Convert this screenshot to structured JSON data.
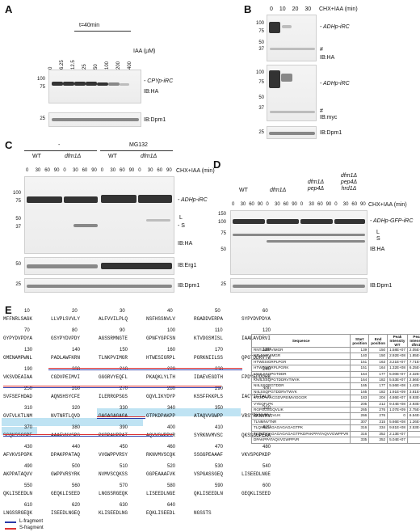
{
  "panels": {
    "A": {
      "letter": "A",
      "time": "t=40min",
      "iaa_label": "IAA (µM)",
      "concentrations": [
        "0",
        "6.25",
        "12.5",
        "25",
        "50",
        "100",
        "200",
        "400"
      ],
      "mw": [
        "100",
        "75",
        "25"
      ],
      "band_label": "- CPYp-iRC",
      "ib1": "IB:HA",
      "ib2": "IB:Dpm1"
    },
    "B": {
      "letter": "B",
      "times": [
        "0",
        "10",
        "20",
        "30"
      ],
      "treatment": "CHX+IAA (min)",
      "mw": [
        "100",
        "75",
        "50",
        "37",
        "100",
        "75",
        "50",
        "37",
        "25"
      ],
      "band_label": "- ADHp-iRC",
      "hash": "#",
      "ib1": "IB:HA",
      "ib2": "IB:myc",
      "ib3": "IB:Dpm1"
    },
    "C": {
      "letter": "C",
      "group_minus": "-",
      "group_mg": "MG132",
      "strains": [
        "WT",
        "dfm1Δ",
        "WT",
        "dfm1Δ"
      ],
      "times": [
        "0",
        "30",
        "60",
        "90",
        "0",
        "30",
        "60",
        "90",
        "0",
        "30",
        "60",
        "90",
        "0",
        "30",
        "60",
        "90"
      ],
      "treatment": "CHX+IAA (min)",
      "mw": [
        "100",
        "75",
        "50",
        "37",
        "50",
        "25"
      ],
      "band_label": "- ADHp-iRC",
      "frag_L": "L",
      "frag_S": "- S",
      "ib1": "IB:HA",
      "ib2": "IB:Erg1",
      "ib3": "IB:Dpm1"
    },
    "D": {
      "letter": "D",
      "strains": [
        "WT",
        "dfm1Δ",
        "dfm1Δ pep4Δ",
        "dfm1Δ pep4Δ hrd1Δ"
      ],
      "times": [
        "0",
        "30",
        "60",
        "90",
        "0",
        "30",
        "60",
        "90",
        "0",
        "30",
        "60",
        "90",
        "0",
        "30",
        "60",
        "90"
      ],
      "treatment": "CHX+IAA (min)",
      "mw": [
        "150",
        "100",
        "75",
        "50",
        "25"
      ],
      "band_label": "- ADHp-GFP-iRC",
      "frag_L": "L",
      "frag_S": "S",
      "ib1": "IB:HA",
      "ib2": "IB:Dpm1"
    },
    "E": {
      "letter": "E",
      "rows": [
        {
          "pos": [
            "10",
            "20",
            "30",
            "40",
            "50",
            "60"
          ],
          "seq": [
            "MFFNRLSAGK",
            "LLVPLSVVLY",
            "ALFVVILPLQ",
            "NSFHSSNVLV",
            "RGADDVERPA",
            "SYPYDVPDYA"
          ]
        },
        {
          "pos": [
            "70",
            "80",
            "90",
            "100",
            "110",
            "120"
          ],
          "seq": [
            "GYPYDVPDYA",
            "GSYPYDVPDY",
            "AGSSRMNGTE",
            "GPNFYGPFSN",
            "KTVDGSMISL",
            "IAALAVDRVI"
          ]
        },
        {
          "pos": [
            "130",
            "140",
            "150",
            "160",
            "170",
            "180"
          ],
          "seq": [
            "GMENAMPWNL",
            "PADLAWFKRN",
            "TLNKPVIMGR",
            "HTWESIGRPL",
            "PGRKNIILSS",
            "QPGTDDRVTW"
          ]
        },
        {
          "pos": [
            "190",
            "200",
            "210",
            "220",
            "230",
            "240"
          ],
          "seq": [
            "VKSVDEAIAA",
            "CGDVPEIMVI",
            "GGGRVYEQFL",
            "PKAQKLYLTH",
            "IDAEVEGDTH",
            "FPDYEPDDWE"
          ]
        },
        {
          "pos": [
            "250",
            "260",
            "270",
            "280",
            "290",
            "300"
          ],
          "seq": [
            "SVFSEFHDAD",
            "AQNSHSYCFE",
            "ILERRGPSGS",
            "GQVLIKYDYP",
            "KSSFFKKPLS",
            "IACYIFTALM"
          ]
        },
        {
          "pos": [
            "310",
            "320",
            "330",
            "340",
            "350",
            "360"
          ],
          "seq": [
            "GVFVLKTLNM",
            "NVTNRTLQVD",
            "GAGAGAGAGA",
            "GTPKDPAKPP",
            "ATAQVVGWPP",
            "VRSYRKNVMV"
          ]
        },
        {
          "pos": [
            "370",
            "380",
            "390",
            "400",
            "410",
            "420"
          ],
          "seq": [
            "SCQKSSGGPE",
            "AAAFVKVSPG",
            "PKDPAKPPAT",
            "AQVVGWPPVR",
            "SYRKNVMVSC",
            "QKSSGGPEAA"
          ]
        },
        {
          "pos": [
            "430",
            "440",
            "450",
            "460",
            "470",
            "480"
          ],
          "seq": [
            "AFVKVSPGPK",
            "DPAKPPATAQ",
            "VVGWPPVRSY",
            "RKNVMVSCQK",
            "SSGGPEAAAF",
            "VKVSPGPKDP"
          ]
        },
        {
          "pos": [
            "490",
            "500",
            "510",
            "520",
            "530",
            "540"
          ],
          "seq": [
            "AKPPATAQVV",
            "GWPPVRSYRK",
            "NVMVSCQKSS",
            "GGPEAAAFVK",
            "VSPGASSGEQ",
            "LISEEDLNGE"
          ]
        },
        {
          "pos": [
            "550",
            "560",
            "570",
            "580",
            "590",
            "600"
          ],
          "seq": [
            "QKLISEEDLN",
            "GEQKLISEED",
            "LNGSSRGEQK",
            "LISEEDLNGE",
            "QKLISEEDLN",
            "GEQKLISEED"
          ]
        },
        {
          "pos": [
            "610",
            "620",
            "630",
            "640",
            "",
            ""
          ],
          "seq": [
            "LNGSSRGEQK",
            "ISEEDLNGEQ",
            "KLISEEDLNG",
            "EQKLISEEDL",
            "NGSSTS",
            ""
          ]
        }
      ],
      "legend": [
        {
          "label": "L-fragment",
          "color": "#2a3aa8"
        },
        {
          "label": "S-fragment",
          "color": "#d33333"
        }
      ],
      "table": {
        "headers": [
          "Sequence",
          "Start position",
          "End position",
          "Peak Intensity WT",
          "Peak Intensity dfm1Δ"
        ],
        "rows": [
          [
            "RNTLNKPVIMGR",
            "139",
            "150",
            "1.58E+07",
            "2.05E+07"
          ],
          [
            "NTLNKPVIMGR",
            "140",
            "150",
            "2.92E+08",
            "1.85E+09"
          ],
          [
            "HTWESIGRPLPGR",
            "151",
            "163",
            "3.21E+07",
            "7.71E+08"
          ],
          [
            "HTWESIGRPLPGRK",
            "151",
            "164",
            "1.32E+08",
            "6.25E+08"
          ],
          [
            "KNIILSSQPGTDDR",
            "164",
            "177",
            "5.00E+07",
            "2.32E+07"
          ],
          [
            "KNIILSSQPGTDDRVTWVK",
            "164",
            "182",
            "5.53E+07",
            "2.56E+08"
          ],
          [
            "NIILSSQPGTDDR",
            "165",
            "177",
            "5.56E+08",
            "1.42E+09"
          ],
          [
            "NIILSSQPGTDDRVTWVK",
            "165",
            "182",
            "1.91E+09",
            "3.81E+09"
          ],
          [
            "SVDEAIAACGDVPEIMVIGGGR",
            "183",
            "204",
            "4.86E+07",
            "8.93E+07"
          ],
          [
            "VYEQFLPK",
            "205",
            "212",
            "9.44E+08",
            "2.93E+09"
          ],
          [
            "RGPSGSGQVLIK",
            "265",
            "276",
            "1.07E+09",
            "2.75E+09"
          ],
          [
            "GPSGSGQVLIK",
            "266",
            "276",
            "0",
            "6.54E+08"
          ],
          [
            "TLNMNVTNR",
            "307",
            "315",
            "5.66E+08",
            "1.26E+09"
          ],
          [
            "TLQVDGAGAGAGAGAGTPK",
            "316",
            "334",
            "9.81E+08",
            "2.53E+07"
          ],
          [
            "TLQVDGAGAGAGAGAGTPKDPAKPPATAQVVGWPPVR",
            "316",
            "352",
            "2.13E+07",
            "0"
          ],
          [
            "DPAKPPATAQVVGWPPVR",
            "335",
            "352",
            "5.04E+07",
            "0"
          ]
        ]
      }
    }
  }
}
